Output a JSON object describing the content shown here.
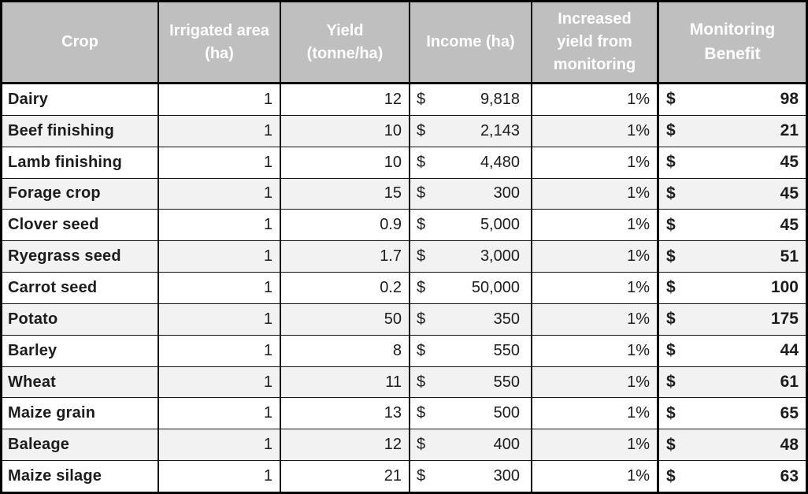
{
  "colors": {
    "header_bg": "#BFBFBF",
    "header_text": "#FFFFFF",
    "stripe_bg": "#F2F2F2",
    "border": "#000000",
    "text": "#1C1C1C"
  },
  "table": {
    "currency_symbol": "$",
    "columns": [
      {
        "key": "crop",
        "label": "Crop"
      },
      {
        "key": "irrigated-area",
        "label": "Irrigated area (ha)"
      },
      {
        "key": "yield",
        "label": "Yield (tonne/ha)"
      },
      {
        "key": "income",
        "label": "Income (ha)"
      },
      {
        "key": "increased-yield",
        "label": "Increased yield from monitoring"
      },
      {
        "key": "monitoring-benefit",
        "label": "Monitoring Benefit"
      }
    ],
    "rows": [
      {
        "crop": "Dairy",
        "irrigated_area": "1",
        "yield": "12",
        "income": "9,818",
        "increased_yield": "1%",
        "benefit": "98"
      },
      {
        "crop": "Beef finishing",
        "irrigated_area": "1",
        "yield": "10",
        "income": "2,143",
        "increased_yield": "1%",
        "benefit": "21"
      },
      {
        "crop": "Lamb finishing",
        "irrigated_area": "1",
        "yield": "10",
        "income": "4,480",
        "increased_yield": "1%",
        "benefit": "45"
      },
      {
        "crop": "Forage crop",
        "irrigated_area": "1",
        "yield": "15",
        "income": "300",
        "increased_yield": "1%",
        "benefit": "45"
      },
      {
        "crop": "Clover seed",
        "irrigated_area": "1",
        "yield": "0.9",
        "income": "5,000",
        "increased_yield": "1%",
        "benefit": "45"
      },
      {
        "crop": "Ryegrass seed",
        "irrigated_area": "1",
        "yield": "1.7",
        "income": "3,000",
        "increased_yield": "1%",
        "benefit": "51"
      },
      {
        "crop": "Carrot seed",
        "irrigated_area": "1",
        "yield": "0.2",
        "income": "50,000",
        "increased_yield": "1%",
        "benefit": "100"
      },
      {
        "crop": "Potato",
        "irrigated_area": "1",
        "yield": "50",
        "income": "350",
        "increased_yield": "1%",
        "benefit": "175"
      },
      {
        "crop": "Barley",
        "irrigated_area": "1",
        "yield": "8",
        "income": "550",
        "increased_yield": "1%",
        "benefit": "44"
      },
      {
        "crop": "Wheat",
        "irrigated_area": "1",
        "yield": "11",
        "income": "550",
        "increased_yield": "1%",
        "benefit": "61"
      },
      {
        "crop": "Maize grain",
        "irrigated_area": "1",
        "yield": "13",
        "income": "500",
        "increased_yield": "1%",
        "benefit": "65"
      },
      {
        "crop": "Baleage",
        "irrigated_area": "1",
        "yield": "12",
        "income": "400",
        "increased_yield": "1%",
        "benefit": "48"
      },
      {
        "crop": "Maize silage",
        "irrigated_area": "1",
        "yield": "21",
        "income": "300",
        "increased_yield": "1%",
        "benefit": "63"
      }
    ]
  }
}
